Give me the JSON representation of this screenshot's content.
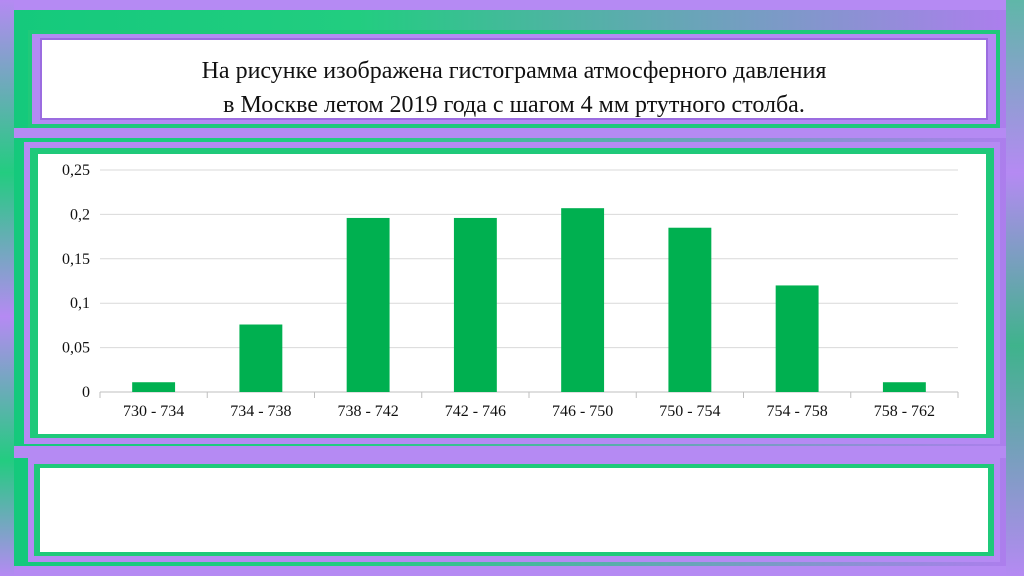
{
  "slide": {
    "title_line1": "На рисунке изображена гистограмма атмосферного давления",
    "title_line2": "в Москве летом 2019 года с шагом 4 мм ртутного  столба."
  },
  "colors": {
    "bar": "#00b050",
    "grid": "#d9d9d9",
    "accent_green": "#1fc97a",
    "accent_purple": "#b58af3"
  },
  "chart_data": {
    "type": "bar",
    "categories": [
      "730 - 734",
      "734 - 738",
      "738 - 742",
      "742 - 746",
      "746 - 750",
      "750 - 754",
      "754 - 758",
      "758 - 762"
    ],
    "values": [
      0.011,
      0.076,
      0.196,
      0.196,
      0.207,
      0.185,
      0.12,
      0.011
    ],
    "ylim": [
      0,
      0.25
    ],
    "yticks": [
      0,
      0.05,
      0.1,
      0.15,
      0.2,
      0.25
    ],
    "ytick_labels": [
      "0",
      "0,05",
      "0,1",
      "0,15",
      "0,2",
      "0,25"
    ],
    "grid": true,
    "legend": "none",
    "title": "",
    "xlabel": "",
    "ylabel": ""
  }
}
